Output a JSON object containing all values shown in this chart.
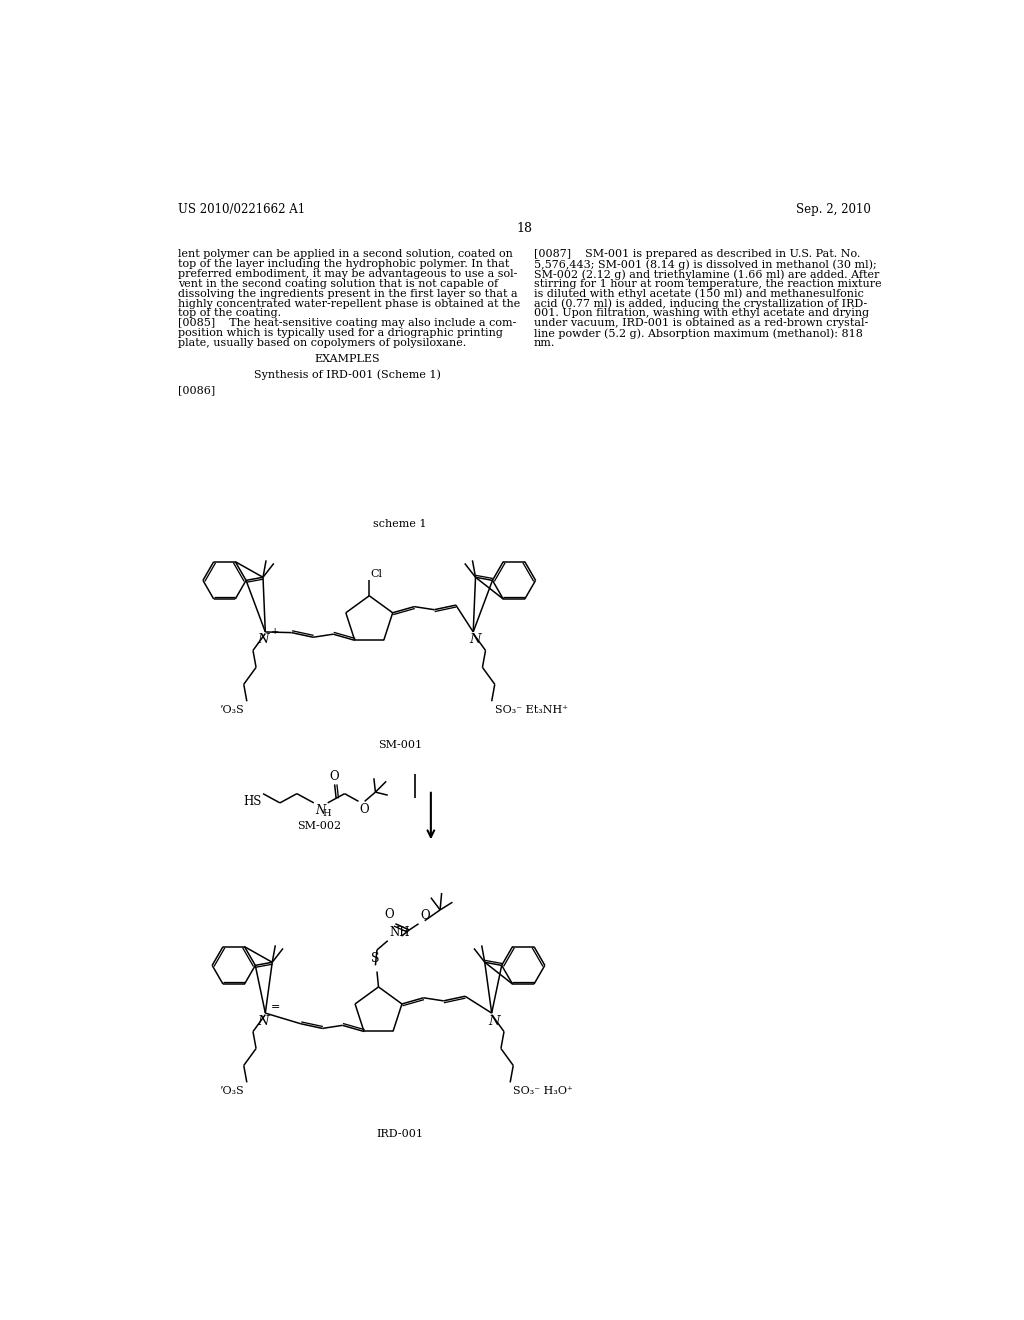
{
  "page_width": 10.24,
  "page_height": 13.2,
  "bg_color": "#ffffff",
  "header_left": "US 2010/0221662 A1",
  "header_right": "Sep. 2, 2010",
  "page_number": "18",
  "left_col_text": [
    "lent polymer can be applied in a second solution, coated on",
    "top of the layer including the hydrophobic polymer. In that",
    "preferred embodiment, it may be advantageous to use a sol-",
    "vent in the second coating solution that is not capable of",
    "dissolving the ingredients present in the first layer so that a",
    "highly concentrated water-repellent phase is obtained at the",
    "top of the coating.",
    "[0085]",
    "The heat-sensitive coating may also include a com-",
    "position which is typically used for a driographic printing",
    "plate, usually based on copolymers of polysiloxane.",
    "EXAMPLES",
    "Synthesis of IRD-001 (Scheme 1)",
    "[0086]"
  ],
  "right_col_text": [
    "[0087]    SM-001 is prepared as described in U.S. Pat. No.",
    "5,576,443; SM-001 (8.14 g) is dissolved in methanol (30 ml);",
    "SM-002 (2.12 g) and triethylamine (1.66 ml) are added. After",
    "stirring for 1 hour at room temperature, the reaction mixture",
    "is diluted with ethyl acetate (150 ml) and methanesulfonic",
    "acid (0.77 ml) is added, inducing the crystallization of IRD-",
    "001. Upon filtration, washing with ethyl acetate and drying",
    "under vacuum, IRD-001 is obtained as a red-brown crystal-",
    "line powder (5.2 g). Absorption maximum (methanol): 818",
    "nm."
  ],
  "font_size_body": 8.0,
  "font_size_header": 8.5,
  "font_size_page_num": 9,
  "text_color": "#000000"
}
